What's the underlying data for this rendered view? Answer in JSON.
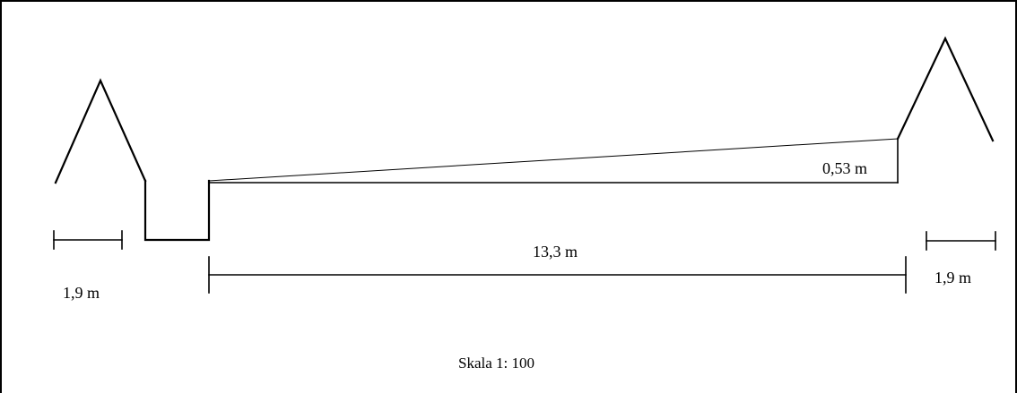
{
  "measurements": {
    "left_width": "1,9 m",
    "right_width": "1,9 m",
    "span": "13,3 m",
    "height_diff": "0,53 m"
  },
  "scale": "Skala 1: 100",
  "colors": {
    "line": "#000000",
    "background": "#ffffff"
  }
}
